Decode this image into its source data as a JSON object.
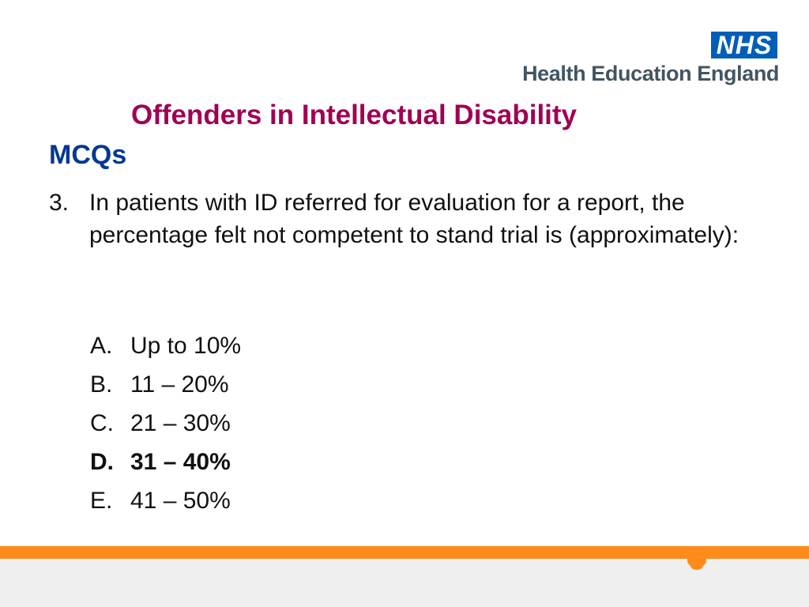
{
  "logo": {
    "nhs_mark": "NHS",
    "organisation": "Health Education England"
  },
  "slide": {
    "title": "Offenders in Intellectual Disability",
    "subtitle": "MCQs"
  },
  "question": {
    "number": "3.",
    "text": "In patients with ID referred for evaluation for a report, the percentage felt not competent to stand trial is (approximately):"
  },
  "options": [
    {
      "letter": "A.",
      "text": "Up to 10%"
    },
    {
      "letter": "B.",
      "text": "11 – 20%"
    },
    {
      "letter": "C.",
      "text": "21 – 30%"
    },
    {
      "letter": "D.",
      "text": "31 – 40%"
    },
    {
      "letter": "E.",
      "text": "41 – 50%"
    }
  ],
  "colors": {
    "title": "#a00054",
    "subtitle": "#003893",
    "nhs_blue": "#005eb8",
    "band_orange": "#ff8c1a",
    "band_grey": "#efefef"
  }
}
